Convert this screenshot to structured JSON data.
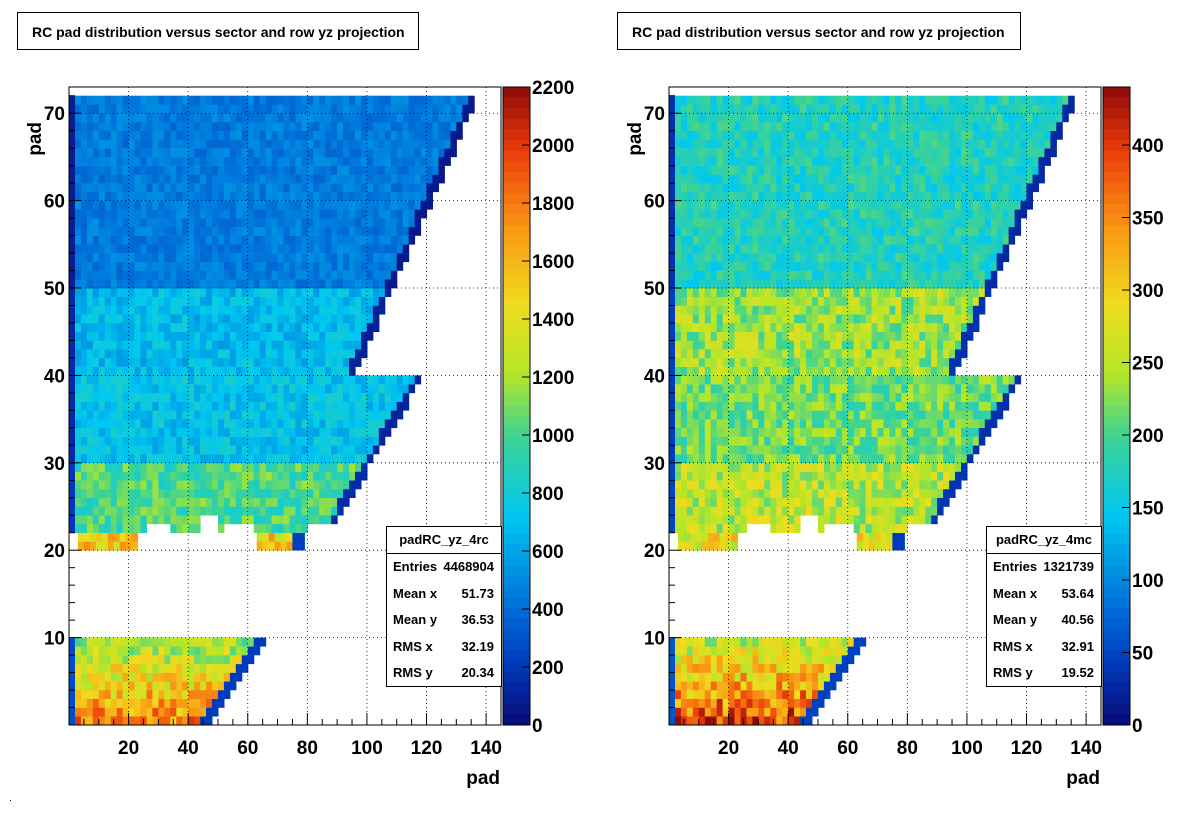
{
  "chart_data": [
    {
      "type": "heatmap",
      "title": "RC pad distribution versus sector and row yz projection",
      "xlabel": "pad",
      "ylabel": "pad",
      "xlim": [
        0,
        145
      ],
      "ylim": [
        0,
        73
      ],
      "x_ticks": [
        "20",
        "40",
        "60",
        "80",
        "100",
        "120",
        "140"
      ],
      "y_ticks": [
        "10",
        "20",
        "30",
        "40",
        "50",
        "60",
        "70"
      ],
      "z_ticks": [
        "0",
        "200",
        "400",
        "600",
        "800",
        "1000",
        "1200",
        "1400",
        "1600",
        "1800",
        "2000",
        "2200"
      ],
      "zlim": [
        0,
        2200
      ],
      "grid": true,
      "stats": {
        "name": "padRC_yz_4rc",
        "entries": "4468904",
        "mean_x": "51.73",
        "mean_y": "36.53",
        "rms_x": "32.19",
        "rms_y": "20.34"
      },
      "typical_counts": {
        "rows_1_10": 1450,
        "rows_21_22": 1500,
        "rows_23_30": 1000,
        "rows_31_40": 720,
        "rows_41_50": 680,
        "rows_51_72": 450
      }
    },
    {
      "type": "heatmap",
      "title": "RC pad distribution versus sector and row yz projection",
      "xlabel": "pad",
      "ylabel": "pad",
      "xlim": [
        0,
        145
      ],
      "ylim": [
        0,
        73
      ],
      "x_ticks": [
        "20",
        "40",
        "60",
        "80",
        "100",
        "120",
        "140"
      ],
      "y_ticks": [
        "10",
        "20",
        "30",
        "40",
        "50",
        "60",
        "70"
      ],
      "z_ticks": [
        "50",
        "100",
        "150",
        "200",
        "250",
        "300",
        "350",
        "400"
      ],
      "zlim": [
        0,
        440
      ],
      "grid": true,
      "stats": {
        "name": "padRC_yz_4mc",
        "entries": "1321739",
        "mean_x": "53.64",
        "mean_y": "40.56",
        "rms_x": "32.91",
        "rms_y": "19.52"
      },
      "typical_counts": {
        "rows_1_10": 320,
        "rows_21_22": 280,
        "rows_23_30": 250,
        "rows_31_40": 215,
        "rows_41_50": 235,
        "rows_51_72": 175
      }
    }
  ],
  "zero_label": "0"
}
